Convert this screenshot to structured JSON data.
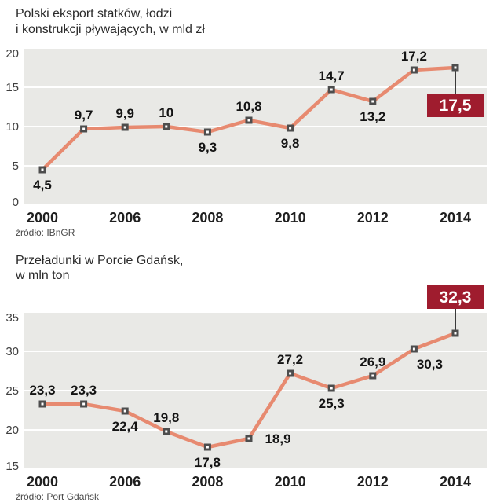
{
  "colors": {
    "line": "#e78a70",
    "marker": "#4d4d4d",
    "marker_center": "#ffffff",
    "plot_bg": "#e9e9e6",
    "grid": "#ffffff",
    "badge_bg": "#9f1c2e",
    "badge_text": "#ffffff",
    "value_label": "#141414",
    "x_tick": "#1f1f1f",
    "y_tick": "#3f3f3f",
    "connector": "#3a3a3a"
  },
  "chart_data": [
    {
      "type": "line",
      "title_line1": "Polski eksport statków, łodzi",
      "title_line2": "i konstrukcji pływających, w mld zł",
      "source": "źródło: IBnGR",
      "ylim": [
        0,
        20
      ],
      "yticks": [
        0,
        5,
        10,
        15,
        20
      ],
      "x_ticks": [
        {
          "index": 0,
          "label": "2000"
        },
        {
          "index": 2,
          "label": "2006"
        },
        {
          "index": 4,
          "label": "2008"
        },
        {
          "index": 6,
          "label": "2010"
        },
        {
          "index": 8,
          "label": "2012"
        },
        {
          "index": 10,
          "label": "2014"
        }
      ],
      "points": [
        {
          "value": 4.5,
          "label": "4,5",
          "label_pos": "below"
        },
        {
          "value": 9.7,
          "label": "9,7",
          "label_pos": "above"
        },
        {
          "value": 9.9,
          "label": "9,9",
          "label_pos": "above"
        },
        {
          "value": 10,
          "label": "10",
          "label_pos": "above"
        },
        {
          "value": 9.3,
          "label": "9,3",
          "label_pos": "below"
        },
        {
          "value": 10.8,
          "label": "10,8",
          "label_pos": "above"
        },
        {
          "value": 9.8,
          "label": "9,8",
          "label_pos": "below"
        },
        {
          "value": 14.7,
          "label": "14,7",
          "label_pos": "above"
        },
        {
          "value": 13.2,
          "label": "13,2",
          "label_pos": "below"
        },
        {
          "value": 17.2,
          "label": "17,2",
          "label_pos": "above"
        },
        {
          "value": 17.5,
          "label": "17,5",
          "label_pos": "badge-below"
        }
      ]
    },
    {
      "type": "line",
      "title_line1": "Przeładunki w Porcie Gdańsk,",
      "title_line2": "w mln ton",
      "source": "źródło: Port Gdańsk",
      "ylim": [
        15,
        35
      ],
      "yticks": [
        15,
        20,
        25,
        30,
        35
      ],
      "x_ticks": [
        {
          "index": 0,
          "label": "2000"
        },
        {
          "index": 2,
          "label": "2006"
        },
        {
          "index": 4,
          "label": "2008"
        },
        {
          "index": 6,
          "label": "2010"
        },
        {
          "index": 8,
          "label": "2012"
        },
        {
          "index": 10,
          "label": "2014"
        }
      ],
      "points": [
        {
          "value": 23.3,
          "label": "23,3",
          "label_pos": "above"
        },
        {
          "value": 23.3,
          "label": "23,3",
          "label_pos": "above"
        },
        {
          "value": 22.4,
          "label": "22,4",
          "label_pos": "below"
        },
        {
          "value": 19.8,
          "label": "19,8",
          "label_pos": "above"
        },
        {
          "value": 17.8,
          "label": "17,8",
          "label_pos": "below"
        },
        {
          "value": 18.9,
          "label": "18,9",
          "label_pos": "right"
        },
        {
          "value": 27.2,
          "label": "27,2",
          "label_pos": "above"
        },
        {
          "value": 25.3,
          "label": "25,3",
          "label_pos": "below"
        },
        {
          "value": 26.9,
          "label": "26,9",
          "label_pos": "above"
        },
        {
          "value": 30.3,
          "label": "30,3",
          "label_pos": "below",
          "label_dx": 20
        },
        {
          "value": 32.3,
          "label": "32,3",
          "label_pos": "badge-above"
        }
      ]
    }
  ]
}
